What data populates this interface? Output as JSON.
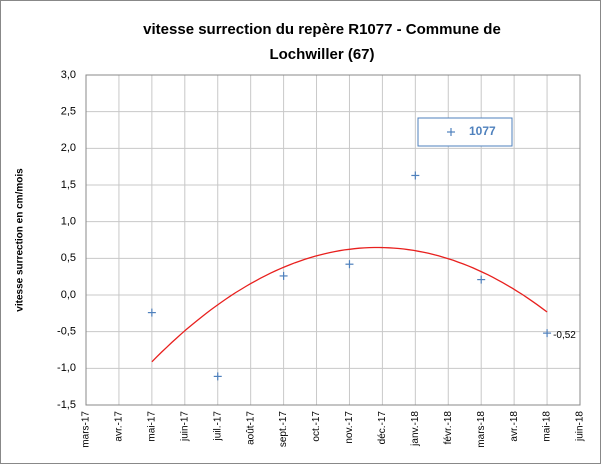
{
  "chart_data": {
    "type": "scatter",
    "title": [
      "vitesse surrection  du repère R1077 - Commune de",
      "Lochwiller (67)"
    ],
    "y_label": "vitesse surrection en cm/mois",
    "xlim": [
      "2017-03",
      "2018-06"
    ],
    "xticks": [
      {
        "value": "2017-03",
        "label": "mars-17"
      },
      {
        "value": "2017-04",
        "label": "avr.-17"
      },
      {
        "value": "2017-05",
        "label": "mai-17"
      },
      {
        "value": "2017-06",
        "label": "juin-17"
      },
      {
        "value": "2017-07",
        "label": "juil.-17"
      },
      {
        "value": "2017-08",
        "label": "août-17"
      },
      {
        "value": "2017-09",
        "label": "sept.-17"
      },
      {
        "value": "2017-10",
        "label": "oct.-17"
      },
      {
        "value": "2017-11",
        "label": "nov.-17"
      },
      {
        "value": "2017-12",
        "label": "déc.-17"
      },
      {
        "value": "2018-01",
        "label": "janv.-18"
      },
      {
        "value": "2018-02",
        "label": "févr.-18"
      },
      {
        "value": "2018-03",
        "label": "mars-18"
      },
      {
        "value": "2018-04",
        "label": "avr.-18"
      },
      {
        "value": "2018-05",
        "label": "mai-18"
      },
      {
        "value": "2018-06",
        "label": "juin-18"
      }
    ],
    "ylim": [
      -1.5,
      3.0
    ],
    "yticks": [
      {
        "value": -1.5,
        "label": "-1,5"
      },
      {
        "value": -1.0,
        "label": "-1,0"
      },
      {
        "value": -0.5,
        "label": "-0,5"
      },
      {
        "value": 0,
        "label": "0,0"
      },
      {
        "value": 0.5,
        "label": "0,5"
      },
      {
        "value": 1.0,
        "label": "1,0"
      },
      {
        "value": 1.5,
        "label": "1,5"
      },
      {
        "value": 2.0,
        "label": "2,0"
      },
      {
        "value": 2.5,
        "label": "2,5"
      },
      {
        "value": 3.0,
        "label": "3,0"
      }
    ],
    "grid": true,
    "series": [
      {
        "name": "1077",
        "color": "#4f81bd",
        "x": [
          "2017-05",
          "2017-07",
          "2017-09",
          "2017-11",
          "2018-01",
          "2018-03",
          "2018-05"
        ],
        "values": [
          -0.24,
          -1.11,
          0.26,
          0.42,
          1.63,
          0.21,
          -0.52
        ],
        "value_labels": [
          null,
          null,
          null,
          null,
          null,
          null,
          "-0,52"
        ]
      }
    ],
    "trendline": {
      "type": "polynomial",
      "order": 2,
      "color": "#e8201e"
    }
  }
}
